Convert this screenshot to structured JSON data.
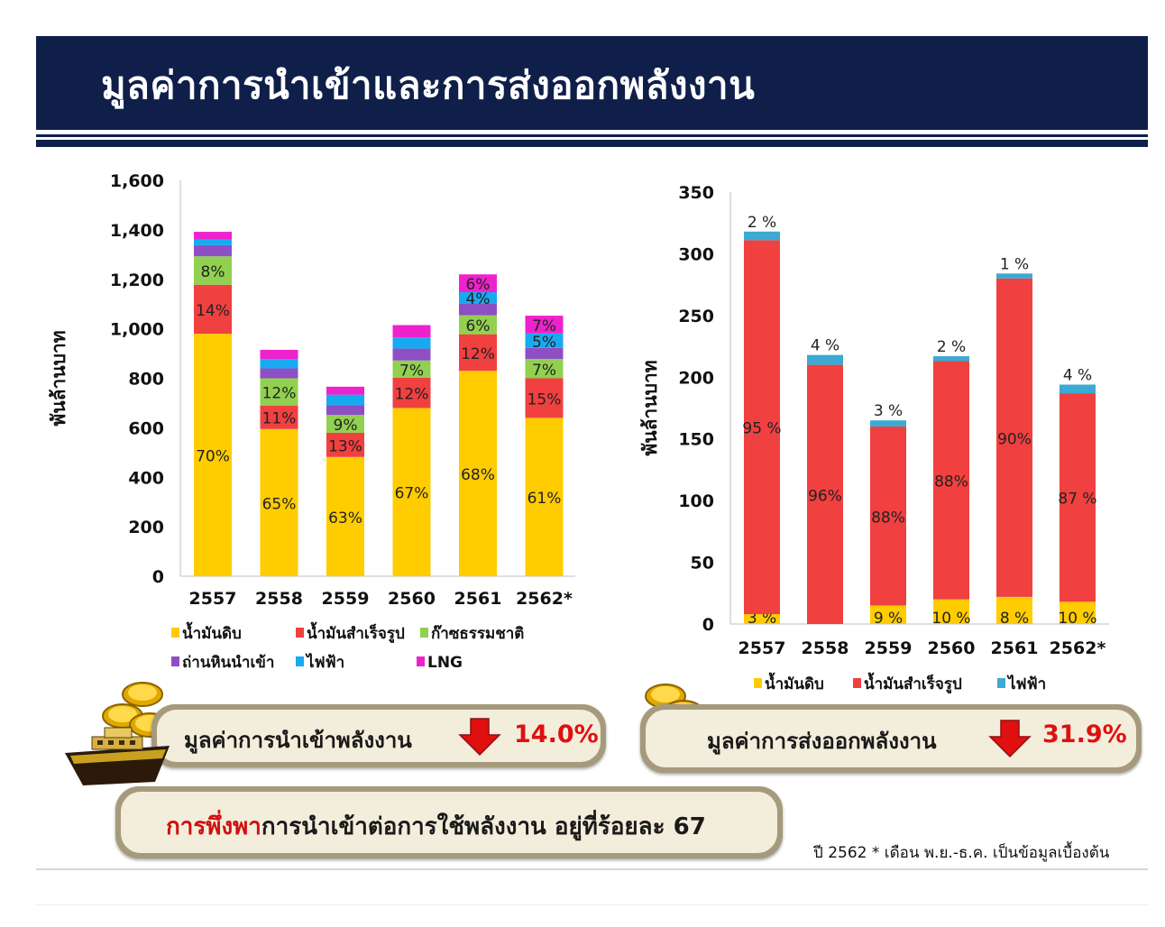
{
  "slide": {
    "title": "มูลค่าการนำเข้าและการส่งออกพลังงาน",
    "import_summary_label": "มูลค่าการนำเข้าพลังงาน",
    "import_change": "14.0%",
    "export_summary_label": "มูลค่าการส่งออกพลังงาน",
    "export_change": "31.9%",
    "dependency_red": "การพึ่งพา",
    "dependency_rest": "การนำเข้าต่อการใช้พลังงาน อยู่ที่ร้อยละ 67",
    "footnote": "ปี 2562 * เดือน พ.ย.-ธ.ค. เป็นข้อมูลเบื้องต้น",
    "colors": {
      "title_bg": "#0f1f4a",
      "down_arrow": "#e01010",
      "pill_border": "#a59a7c",
      "pill_fill": "#f3eddb"
    },
    "icons": [
      "coin-stack-icon",
      "ship-icon",
      "down-arrow-icon"
    ]
  },
  "chart_data": [
    {
      "type": "bar",
      "stacked": true,
      "ylabel": "พันล้านบาท",
      "ylim": [
        0,
        1600
      ],
      "yticks": [
        "0",
        "200",
        "400",
        "600",
        "800",
        "1,000",
        "1,200",
        "1,400",
        "1,600"
      ],
      "grid": false,
      "legend_position": "bottom",
      "categories": [
        "2557",
        "2558",
        "2559",
        "2560",
        "2561",
        "2562*"
      ],
      "series": [
        {
          "name": "น้ำมันดิบ",
          "color": "#ffcc00",
          "values": [
            980,
            595,
            482,
            680,
            830,
            640
          ],
          "labels": [
            "70%",
            "65%",
            "63%",
            "67%",
            "68%",
            "61%"
          ]
        },
        {
          "name": "น้ำมันสำเร็จรูป",
          "color": "#f04040",
          "values": [
            198,
            95,
            98,
            122,
            148,
            160
          ],
          "labels": [
            "14%",
            "11%",
            "13%",
            "12%",
            "12%",
            "15%"
          ]
        },
        {
          "name": "ก๊าซธรรมชาติ",
          "color": "#92d050",
          "values": [
            115,
            110,
            72,
            70,
            77,
            78
          ],
          "labels": [
            "8%",
            "12%",
            "9%",
            "7%",
            "6%",
            "7%"
          ]
        },
        {
          "name": "ถ่านหินนำเข้า",
          "color": "#8e4fc4",
          "values": [
            45,
            40,
            40,
            48,
            48,
            45
          ],
          "labels": [
            "",
            "",
            "",
            "",
            "",
            ""
          ]
        },
        {
          "name": "ไฟฟ้า",
          "color": "#18aaf0",
          "values": [
            22,
            38,
            42,
            45,
            45,
            58
          ],
          "labels": [
            "",
            "",
            "",
            "",
            "4%",
            "5%"
          ]
        },
        {
          "name": "LNG",
          "color": "#ee22cc",
          "values": [
            32,
            37,
            32,
            50,
            72,
            72
          ],
          "labels": [
            "",
            "",
            "",
            "",
            "6%",
            "7%"
          ]
        }
      ]
    },
    {
      "type": "bar",
      "stacked": true,
      "ylabel": "พันล้านบาท",
      "ylim": [
        0,
        350
      ],
      "yticks": [
        "0",
        "50",
        "100",
        "150",
        "200",
        "250",
        "300",
        "350"
      ],
      "grid": false,
      "legend_position": "bottom",
      "categories": [
        "2557",
        "2558",
        "2559",
        "2560",
        "2561",
        "2562*"
      ],
      "series": [
        {
          "name": "น้ำมันดิบ",
          "color": "#ffcc00",
          "values": [
            8,
            0,
            15,
            20,
            22,
            18
          ],
          "labels": [
            "3 %",
            "",
            "9 %",
            "10 %",
            "8 %",
            "10 %"
          ]
        },
        {
          "name": "น้ำมันสำเร็จรูป",
          "color": "#f04040",
          "values": [
            303,
            210,
            145,
            193,
            258,
            169
          ],
          "labels": [
            "95 %",
            "96%",
            "88%",
            "88%",
            "90%",
            "87 %"
          ]
        },
        {
          "name": "ไฟฟ้า",
          "color": "#3caad2",
          "values": [
            7,
            8,
            5,
            4,
            4,
            7
          ],
          "labels": [
            "2 %",
            "4 %",
            "3 %",
            "2 %",
            "1 %",
            "4 %"
          ]
        }
      ]
    }
  ]
}
